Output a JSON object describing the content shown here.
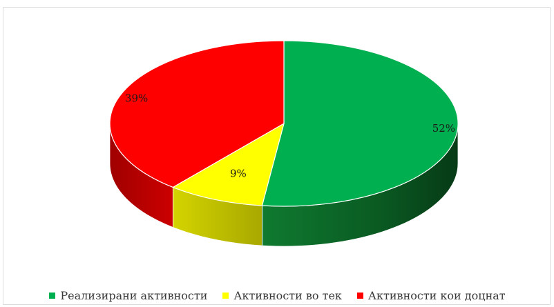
{
  "chart_data": {
    "type": "pie",
    "style": "3d",
    "categories": [
      "Реализирани активности",
      "Активности во тек",
      "Активности кои доцнат"
    ],
    "values": [
      52,
      9,
      39
    ],
    "labels": [
      "52%",
      "9%",
      "39%"
    ],
    "colors": [
      "#00b050",
      "#ffff00",
      "#ff0000"
    ],
    "side_colors": [
      "#0e6a2a",
      "#b8b800",
      "#b80000"
    ],
    "legend_position": "bottom",
    "start_angle": "12 o'clock, clockwise"
  }
}
